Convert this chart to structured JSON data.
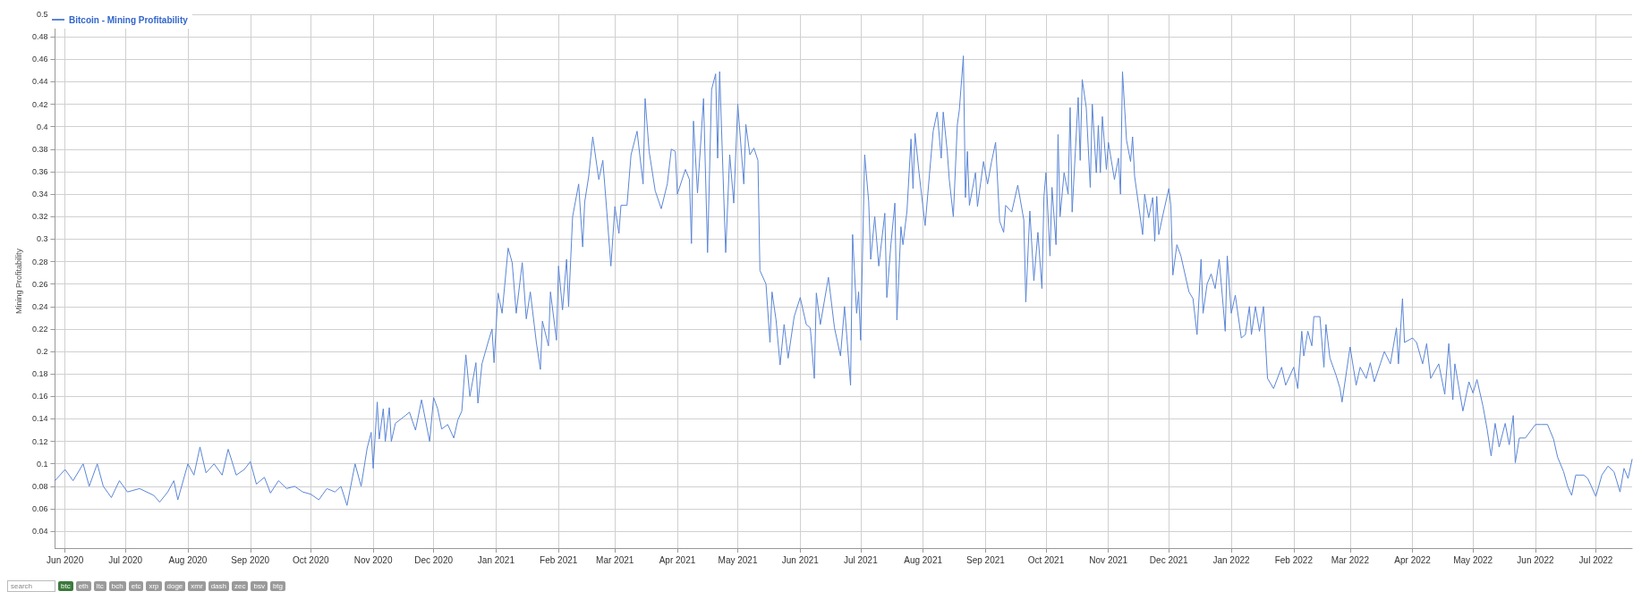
{
  "chart_data": {
    "type": "line",
    "ylabel": "Mining Profitability",
    "legend": "top left",
    "grid": true,
    "marker": "none",
    "line_style": "solid",
    "xlim": [
      "2020-05-27",
      "2022-07-19"
    ],
    "xticks": [
      {
        "value": "2020-06-01",
        "label": "Jun 2020"
      },
      {
        "value": "2020-07-01",
        "label": "Jul 2020"
      },
      {
        "value": "2020-08-01",
        "label": "Aug 2020"
      },
      {
        "value": "2020-09-01",
        "label": "Sep 2020"
      },
      {
        "value": "2020-10-01",
        "label": "Oct 2020"
      },
      {
        "value": "2020-11-01",
        "label": "Nov 2020"
      },
      {
        "value": "2020-12-01",
        "label": "Dec 2020"
      },
      {
        "value": "2021-01-01",
        "label": "Jan 2021"
      },
      {
        "value": "2021-02-01",
        "label": "Feb 2021"
      },
      {
        "value": "2021-03-01",
        "label": "Mar 2021"
      },
      {
        "value": "2021-04-01",
        "label": "Apr 2021"
      },
      {
        "value": "2021-05-01",
        "label": "May 2021"
      },
      {
        "value": "2021-06-01",
        "label": "Jun 2021"
      },
      {
        "value": "2021-07-01",
        "label": "Jul 2021"
      },
      {
        "value": "2021-08-01",
        "label": "Aug 2021"
      },
      {
        "value": "2021-09-01",
        "label": "Sep 2021"
      },
      {
        "value": "2021-10-01",
        "label": "Oct 2021"
      },
      {
        "value": "2021-11-01",
        "label": "Nov 2021"
      },
      {
        "value": "2021-12-01",
        "label": "Dec 2021"
      },
      {
        "value": "2022-01-01",
        "label": "Jan 2022"
      },
      {
        "value": "2022-02-01",
        "label": "Feb 2022"
      },
      {
        "value": "2022-03-01",
        "label": "Mar 2022"
      },
      {
        "value": "2022-04-01",
        "label": "Apr 2022"
      },
      {
        "value": "2022-05-01",
        "label": "May 2022"
      },
      {
        "value": "2022-06-01",
        "label": "Jun 2022"
      },
      {
        "value": "2022-07-01",
        "label": "Jul 2022"
      }
    ],
    "ylim": [
      0.025,
      0.5
    ],
    "yticks": [
      0.04,
      0.06,
      0.08,
      0.1,
      0.12,
      0.14,
      0.16,
      0.18,
      0.2,
      0.22,
      0.24,
      0.26,
      0.28,
      0.3,
      0.32,
      0.34,
      0.36,
      0.38,
      0.4,
      0.42,
      0.44,
      0.46,
      0.48,
      0.5
    ],
    "annotations": [
      "search",
      "btc",
      "eth",
      "ltc",
      "bch",
      "etc",
      "xrp",
      "doge",
      "xmr",
      "dash",
      "zec",
      "bsv",
      "btg"
    ],
    "series": [
      {
        "name": "Bitcoin - Mining Profitability",
        "color": "#5b86d6",
        "x": [
          "2020-05-27",
          "2020-06-01",
          "2020-06-05",
          "2020-06-10",
          "2020-06-13",
          "2020-06-17",
          "2020-06-20",
          "2020-06-24",
          "2020-06-28",
          "2020-07-02",
          "2020-07-08",
          "2020-07-15",
          "2020-07-18",
          "2020-07-22",
          "2020-07-25",
          "2020-07-27",
          "2020-08-01",
          "2020-08-04",
          "2020-08-07",
          "2020-08-10",
          "2020-08-14",
          "2020-08-18",
          "2020-08-21",
          "2020-08-25",
          "2020-08-29",
          "2020-09-01",
          "2020-09-04",
          "2020-09-08",
          "2020-09-11",
          "2020-09-15",
          "2020-09-19",
          "2020-09-23",
          "2020-09-27",
          "2020-10-01",
          "2020-10-05",
          "2020-10-09",
          "2020-10-13",
          "2020-10-16",
          "2020-10-19",
          "2020-10-23",
          "2020-10-26",
          "2020-10-29",
          "2020-10-31",
          "2020-11-01",
          "2020-11-03",
          "2020-11-04",
          "2020-11-06",
          "2020-11-07",
          "2020-11-09",
          "2020-11-10",
          "2020-11-12",
          "2020-11-17",
          "2020-11-19",
          "2020-11-22",
          "2020-11-25",
          "2020-11-29",
          "2020-12-01",
          "2020-12-03",
          "2020-12-05",
          "2020-12-08",
          "2020-12-11",
          "2020-12-13",
          "2020-12-15",
          "2020-12-17",
          "2020-12-19",
          "2020-12-22",
          "2020-12-23",
          "2020-12-25",
          "2020-12-28",
          "2020-12-30",
          "2020-12-31",
          "2021-01-02",
          "2021-01-04",
          "2021-01-07",
          "2021-01-09",
          "2021-01-11",
          "2021-01-14",
          "2021-01-16",
          "2021-01-18",
          "2021-01-21",
          "2021-01-23",
          "2021-01-24",
          "2021-01-27",
          "2021-01-28",
          "2021-01-31",
          "2021-02-01",
          "2021-02-03",
          "2021-02-05",
          "2021-02-06",
          "2021-02-08",
          "2021-02-11",
          "2021-02-13",
          "2021-02-14",
          "2021-02-16",
          "2021-02-18",
          "2021-02-21",
          "2021-02-23",
          "2021-02-25",
          "2021-02-27",
          "2021-03-01",
          "2021-03-03",
          "2021-03-04",
          "2021-03-07",
          "2021-03-09",
          "2021-03-12",
          "2021-03-15",
          "2021-03-16",
          "2021-03-18",
          "2021-03-21",
          "2021-03-24",
          "2021-03-27",
          "2021-03-29",
          "2021-03-31",
          "2021-04-01",
          "2021-04-05",
          "2021-04-07",
          "2021-04-08",
          "2021-04-09",
          "2021-04-11",
          "2021-04-14",
          "2021-04-16",
          "2021-04-18",
          "2021-04-20",
          "2021-04-21",
          "2021-04-22",
          "2021-04-24",
          "2021-04-25",
          "2021-04-27",
          "2021-04-29",
          "2021-05-01",
          "2021-05-04",
          "2021-05-05",
          "2021-05-07",
          "2021-05-09",
          "2021-05-11",
          "2021-05-12",
          "2021-05-15",
          "2021-05-17",
          "2021-05-18",
          "2021-05-20",
          "2021-05-22",
          "2021-05-24",
          "2021-05-26",
          "2021-05-29",
          "2021-06-01",
          "2021-06-04",
          "2021-06-06",
          "2021-06-08",
          "2021-06-09",
          "2021-06-11",
          "2021-06-15",
          "2021-06-18",
          "2021-06-21",
          "2021-06-23",
          "2021-06-26",
          "2021-06-27",
          "2021-06-29",
          "2021-06-30",
          "2021-07-01",
          "2021-07-03",
          "2021-07-05",
          "2021-07-06",
          "2021-07-08",
          "2021-07-10",
          "2021-07-13",
          "2021-07-14",
          "2021-07-16",
          "2021-07-18",
          "2021-07-19",
          "2021-07-21",
          "2021-07-22",
          "2021-07-24",
          "2021-07-26",
          "2021-07-27",
          "2021-07-28",
          "2021-07-30",
          "2021-08-02",
          "2021-08-06",
          "2021-08-08",
          "2021-08-10",
          "2021-08-11",
          "2021-08-13",
          "2021-08-14",
          "2021-08-16",
          "2021-08-18",
          "2021-08-19",
          "2021-08-21",
          "2021-08-22",
          "2021-08-23",
          "2021-08-24",
          "2021-08-27",
          "2021-08-28",
          "2021-08-31",
          "2021-09-02",
          "2021-09-04",
          "2021-09-06",
          "2021-09-08",
          "2021-09-10",
          "2021-09-11",
          "2021-09-14",
          "2021-09-17",
          "2021-09-20",
          "2021-09-21",
          "2021-09-23",
          "2021-09-25",
          "2021-09-27",
          "2021-09-29",
          "2021-09-30",
          "2021-10-01",
          "2021-10-03",
          "2021-10-04",
          "2021-10-06",
          "2021-10-07",
          "2021-10-08",
          "2021-10-10",
          "2021-10-12",
          "2021-10-13",
          "2021-10-14",
          "2021-10-17",
          "2021-10-18",
          "2021-10-19",
          "2021-10-21",
          "2021-10-23",
          "2021-10-24",
          "2021-10-26",
          "2021-10-27",
          "2021-10-28",
          "2021-10-29",
          "2021-10-31",
          "2021-11-01",
          "2021-11-04",
          "2021-11-06",
          "2021-11-07",
          "2021-11-08",
          "2021-11-10",
          "2021-11-12",
          "2021-11-13",
          "2021-11-14",
          "2021-11-18",
          "2021-11-19",
          "2021-11-21",
          "2021-11-23",
          "2021-11-24",
          "2021-11-25",
          "2021-11-26",
          "2021-11-28",
          "2021-12-01",
          "2021-12-02",
          "2021-12-03",
          "2021-12-05",
          "2021-12-07",
          "2021-12-11",
          "2021-12-13",
          "2021-12-15",
          "2021-12-17",
          "2021-12-18",
          "2021-12-20",
          "2021-12-22",
          "2021-12-24",
          "2021-12-26",
          "2021-12-28",
          "2021-12-29",
          "2021-12-30",
          "2022-01-01",
          "2022-01-03",
          "2022-01-06",
          "2022-01-08",
          "2022-01-10",
          "2022-01-11",
          "2022-01-13",
          "2022-01-15",
          "2022-01-17",
          "2022-01-19",
          "2022-01-22",
          "2022-01-26",
          "2022-01-28",
          "2022-02-01",
          "2022-02-03",
          "2022-02-05",
          "2022-02-06",
          "2022-02-08",
          "2022-02-10",
          "2022-02-11",
          "2022-02-14",
          "2022-02-16",
          "2022-02-17",
          "2022-02-19",
          "2022-02-22",
          "2022-02-24",
          "2022-02-25",
          "2022-02-28",
          "2022-03-01",
          "2022-03-04",
          "2022-03-06",
          "2022-03-09",
          "2022-03-11",
          "2022-03-13",
          "2022-03-16",
          "2022-03-18",
          "2022-03-21",
          "2022-03-24",
          "2022-03-25",
          "2022-03-27",
          "2022-03-28",
          "2022-04-01",
          "2022-04-03",
          "2022-04-06",
          "2022-04-08",
          "2022-04-10",
          "2022-04-14",
          "2022-04-17",
          "2022-04-19",
          "2022-04-21",
          "2022-04-22",
          "2022-04-26",
          "2022-04-29",
          "2022-05-01",
          "2022-05-03",
          "2022-05-06",
          "2022-05-08",
          "2022-05-10",
          "2022-05-12",
          "2022-05-14",
          "2022-05-17",
          "2022-05-19",
          "2022-05-21",
          "2022-05-22",
          "2022-05-24",
          "2022-05-27",
          "2022-06-01",
          "2022-06-04",
          "2022-06-07",
          "2022-06-10",
          "2022-06-12",
          "2022-06-15",
          "2022-06-17",
          "2022-06-19",
          "2022-06-21",
          "2022-06-25",
          "2022-06-27",
          "2022-07-01",
          "2022-07-04",
          "2022-07-07",
          "2022-07-10",
          "2022-07-13",
          "2022-07-15",
          "2022-07-17",
          "2022-07-19"
        ],
        "values": [
          0.085,
          0.095,
          0.085,
          0.1,
          0.08,
          0.1,
          0.08,
          0.07,
          0.085,
          0.075,
          0.078,
          0.072,
          0.066,
          0.075,
          0.085,
          0.068,
          0.1,
          0.09,
          0.115,
          0.092,
          0.1,
          0.09,
          0.113,
          0.09,
          0.095,
          0.102,
          0.082,
          0.088,
          0.074,
          0.085,
          0.078,
          0.08,
          0.075,
          0.073,
          0.068,
          0.078,
          0.075,
          0.08,
          0.063,
          0.1,
          0.08,
          0.114,
          0.128,
          0.096,
          0.155,
          0.122,
          0.149,
          0.12,
          0.15,
          0.12,
          0.136,
          0.143,
          0.146,
          0.13,
          0.157,
          0.12,
          0.159,
          0.149,
          0.131,
          0.135,
          0.123,
          0.139,
          0.147,
          0.197,
          0.16,
          0.19,
          0.154,
          0.189,
          0.208,
          0.22,
          0.19,
          0.252,
          0.234,
          0.292,
          0.279,
          0.234,
          0.279,
          0.229,
          0.253,
          0.208,
          0.184,
          0.227,
          0.205,
          0.253,
          0.21,
          0.276,
          0.237,
          0.282,
          0.24,
          0.32,
          0.349,
          0.293,
          0.333,
          0.356,
          0.391,
          0.353,
          0.37,
          0.324,
          0.276,
          0.329,
          0.305,
          0.33,
          0.33,
          0.375,
          0.396,
          0.349,
          0.425,
          0.378,
          0.343,
          0.327,
          0.349,
          0.38,
          0.378,
          0.34,
          0.362,
          0.353,
          0.296,
          0.405,
          0.341,
          0.425,
          0.288,
          0.433,
          0.447,
          0.372,
          0.449,
          0.34,
          0.288,
          0.375,
          0.332,
          0.42,
          0.349,
          0.402,
          0.375,
          0.381,
          0.37,
          0.272,
          0.26,
          0.208,
          0.253,
          0.228,
          0.188,
          0.224,
          0.194,
          0.231,
          0.248,
          0.224,
          0.221,
          0.176,
          0.252,
          0.224,
          0.266,
          0.221,
          0.196,
          0.24,
          0.17,
          0.304,
          0.234,
          0.253,
          0.21,
          0.375,
          0.333,
          0.282,
          0.32,
          0.276,
          0.323,
          0.248,
          0.295,
          0.332,
          0.228,
          0.311,
          0.295,
          0.325,
          0.389,
          0.345,
          0.394,
          0.359,
          0.312,
          0.396,
          0.413,
          0.372,
          0.413,
          0.378,
          0.353,
          0.32,
          0.402,
          0.415,
          0.463,
          0.337,
          0.378,
          0.33,
          0.359,
          0.329,
          0.369,
          0.349,
          0.369,
          0.386,
          0.316,
          0.306,
          0.33,
          0.324,
          0.348,
          0.317,
          0.244,
          0.325,
          0.263,
          0.306,
          0.256,
          0.338,
          0.359,
          0.285,
          0.346,
          0.295,
          0.393,
          0.32,
          0.359,
          0.34,
          0.417,
          0.324,
          0.426,
          0.37,
          0.442,
          0.417,
          0.346,
          0.42,
          0.359,
          0.401,
          0.359,
          0.409,
          0.362,
          0.386,
          0.353,
          0.372,
          0.34,
          0.449,
          0.388,
          0.369,
          0.391,
          0.356,
          0.304,
          0.34,
          0.319,
          0.337,
          0.298,
          0.338,
          0.304,
          0.321,
          0.345,
          0.33,
          0.268,
          0.295,
          0.285,
          0.253,
          0.247,
          0.215,
          0.282,
          0.234,
          0.26,
          0.269,
          0.256,
          0.282,
          0.24,
          0.218,
          0.285,
          0.234,
          0.25,
          0.212,
          0.215,
          0.24,
          0.215,
          0.24,
          0.218,
          0.24,
          0.176,
          0.167,
          0.186,
          0.17,
          0.186,
          0.167,
          0.218,
          0.196,
          0.218,
          0.205,
          0.231,
          0.231,
          0.186,
          0.224,
          0.194,
          0.179,
          0.167,
          0.155,
          0.192,
          0.204,
          0.17,
          0.186,
          0.176,
          0.19,
          0.173,
          0.189,
          0.2,
          0.189,
          0.221,
          0.189,
          0.247,
          0.208,
          0.212,
          0.208,
          0.189,
          0.207,
          0.176,
          0.189,
          0.162,
          0.207,
          0.157,
          0.189,
          0.147,
          0.173,
          0.163,
          0.175,
          0.151,
          0.131,
          0.107,
          0.136,
          0.115,
          0.136,
          0.117,
          0.143,
          0.101,
          0.123,
          0.123,
          0.135,
          0.135,
          0.135,
          0.122,
          0.106,
          0.093,
          0.08,
          0.072,
          0.09,
          0.09,
          0.087,
          0.071,
          0.09,
          0.098,
          0.093,
          0.075,
          0.096,
          0.087,
          0.104
        ]
      }
    ]
  }
}
